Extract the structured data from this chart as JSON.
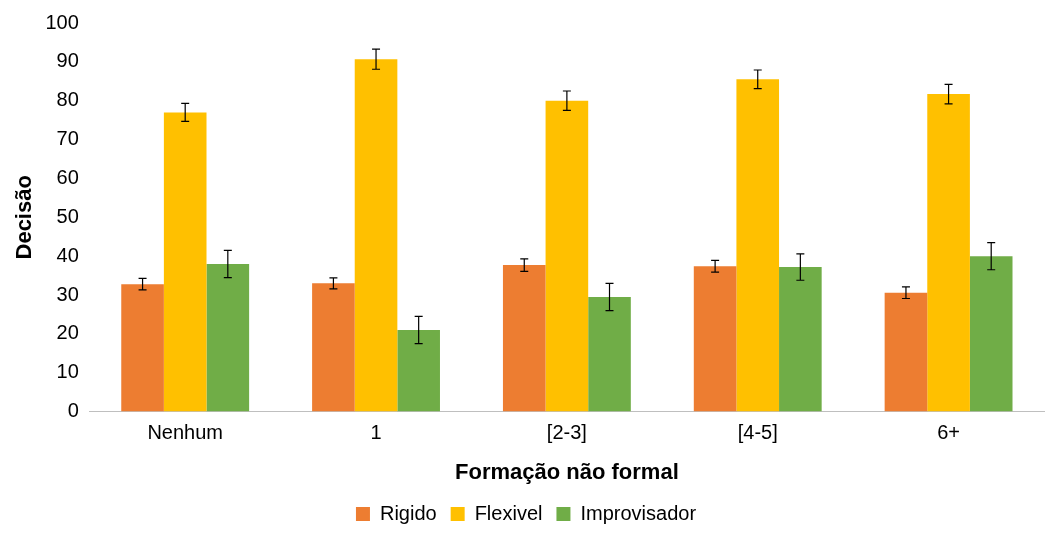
{
  "chart_data": {
    "type": "bar",
    "xlabel": "Formação não formal",
    "ylabel": "Decisão",
    "categories": [
      "Nenhum",
      "1",
      "[2-3]",
      "[4-5]",
      "6+"
    ],
    "series": [
      {
        "name": "Rigido",
        "color": "#ed7d31",
        "values": [
          32.8,
          33,
          37.7,
          37.4,
          30.6
        ],
        "errors": [
          1.5,
          1.4,
          1.6,
          1.5,
          1.5
        ]
      },
      {
        "name": "Flexivel",
        "color": "#ffc000",
        "values": [
          77,
          90.7,
          80,
          85.5,
          81.7
        ],
        "errors": [
          2.3,
          2.6,
          2.5,
          2.4,
          2.5
        ]
      },
      {
        "name": "Improvisador",
        "color": "#70ad47",
        "values": [
          38,
          21,
          29.5,
          37.2,
          40
        ],
        "errors": [
          3.5,
          3.5,
          3.5,
          3.4,
          3.5
        ]
      }
    ],
    "ylim": [
      0,
      100
    ],
    "yticks": [
      0,
      10,
      20,
      30,
      40,
      50,
      60,
      70,
      80,
      90,
      100
    ],
    "grid": false,
    "legend": "bottom"
  }
}
